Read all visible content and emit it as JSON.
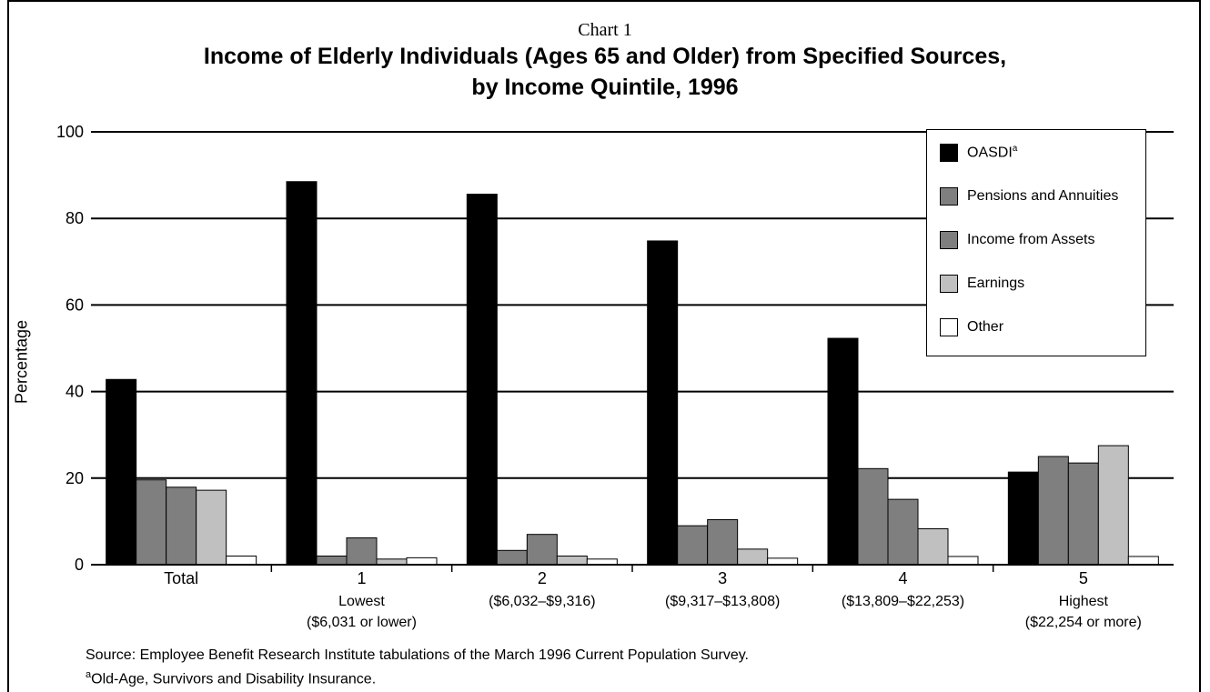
{
  "chart_label": "Chart 1",
  "title_line1": "Income of Elderly Individuals (Ages 65 and Older) from Specified Sources,",
  "title_line2": "by Income Quintile, 1996",
  "source_note": "Source: Employee Benefit Research Institute tabulations of the March 1996 Current Population Survey.",
  "footnote_marker": "a",
  "footnote_text": "Old-Age, Survivors and Disability Insurance.",
  "chart_data": {
    "type": "bar",
    "ylabel": "Percentage",
    "xlabel": "",
    "ylim": [
      0,
      100
    ],
    "yticks": [
      0,
      20,
      40,
      60,
      80,
      100
    ],
    "grid": true,
    "legend_position": "top-right",
    "categories": [
      {
        "label": "Total",
        "sub1": "",
        "sub2": ""
      },
      {
        "label": "1",
        "sub1": "Lowest",
        "sub2": "($6,031 or lower)"
      },
      {
        "label": "2",
        "sub1": "($6,032–$9,316)",
        "sub2": ""
      },
      {
        "label": "3",
        "sub1": "($9,317–$13,808)",
        "sub2": ""
      },
      {
        "label": "4",
        "sub1": "($13,809–$22,253)",
        "sub2": ""
      },
      {
        "label": "5",
        "sub1": "Highest",
        "sub2": "($22,254 or more)"
      }
    ],
    "series": [
      {
        "name": "OASDI",
        "superscript": "a",
        "color": "#000000",
        "values": [
          42.8,
          88.5,
          85.6,
          74.8,
          52.3,
          21.4
        ]
      },
      {
        "name": "Pensions and Annuities",
        "superscript": "",
        "color": "#7f7f7f",
        "values": [
          19.6,
          2.0,
          3.3,
          9.0,
          22.2,
          25.0
        ]
      },
      {
        "name": "Income from Assets",
        "superscript": "",
        "color": "#7f7f7f",
        "values": [
          17.9,
          6.2,
          7.0,
          10.4,
          15.1,
          23.5
        ]
      },
      {
        "name": "Earnings",
        "superscript": "",
        "color": "#c0c0c0",
        "values": [
          17.2,
          1.3,
          2.0,
          3.6,
          8.3,
          27.5
        ]
      },
      {
        "name": "Other",
        "superscript": "",
        "color": "#ffffff",
        "values": [
          2.0,
          1.6,
          1.3,
          1.5,
          1.9,
          1.9
        ]
      }
    ]
  }
}
